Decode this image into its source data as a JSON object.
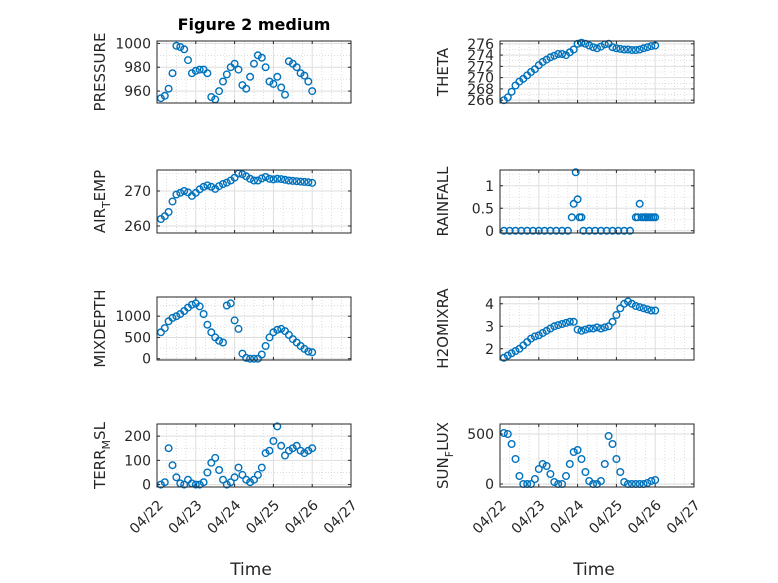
{
  "title": "Figure 2 medium",
  "x_axis_label": "Time",
  "x_tick_labels": [
    "04/22",
    "04/23",
    "04/24",
    "04/25",
    "04/26",
    "04/27"
  ],
  "marker_color": "#0072BD",
  "chart_data": [
    {
      "type": "scatter",
      "ylabel_main": "PRESSURE",
      "ylim": [
        950,
        1002
      ],
      "yticks": [
        960,
        980,
        1000
      ],
      "x": [
        0.1,
        0.2,
        0.3,
        0.4,
        0.5,
        0.6,
        0.7,
        0.8,
        0.9,
        1.0,
        1.1,
        1.2,
        1.3,
        1.4,
        1.5,
        1.6,
        1.7,
        1.8,
        1.9,
        2.0,
        2.1,
        2.2,
        2.3,
        2.4,
        2.5,
        2.6,
        2.7,
        2.8,
        2.9,
        3.0,
        3.1,
        3.2,
        3.3,
        3.4,
        3.5,
        3.6,
        3.7,
        3.8,
        3.9,
        4.0
      ],
      "y": [
        954,
        956,
        962,
        975,
        998,
        997,
        995,
        986,
        975,
        977,
        978,
        978,
        975,
        955,
        953,
        960,
        968,
        974,
        980,
        983,
        978,
        965,
        962,
        972,
        983,
        990,
        988,
        980,
        968,
        966,
        972,
        963,
        957,
        985,
        983,
        980,
        975,
        973,
        968,
        960
      ]
    },
    {
      "type": "scatter",
      "ylabel_main": "THETA",
      "ylim": [
        265.5,
        276.5
      ],
      "yticks": [
        266,
        268,
        270,
        272,
        274,
        276
      ],
      "x": [
        0.1,
        0.2,
        0.3,
        0.4,
        0.5,
        0.6,
        0.7,
        0.8,
        0.9,
        1.0,
        1.1,
        1.2,
        1.3,
        1.4,
        1.5,
        1.6,
        1.7,
        1.8,
        1.9,
        2.0,
        2.1,
        2.2,
        2.3,
        2.4,
        2.5,
        2.6,
        2.7,
        2.8,
        2.9,
        3.0,
        3.1,
        3.2,
        3.3,
        3.4,
        3.5,
        3.6,
        3.7,
        3.8,
        3.9,
        4.0
      ],
      "y": [
        266,
        266.5,
        267.5,
        268.6,
        269.3,
        269.8,
        270.4,
        271.0,
        271.5,
        272.2,
        272.8,
        273.2,
        273.6,
        273.9,
        274.2,
        274.2,
        274.0,
        274.5,
        275.0,
        276.0,
        276.2,
        276.0,
        275.7,
        275.4,
        275.2,
        275.5,
        275.9,
        276.0,
        275.4,
        275.2,
        275.1,
        275.0,
        275.0,
        274.9,
        274.9,
        275.0,
        275.2,
        275.4,
        275.6,
        275.7
      ]
    },
    {
      "type": "scatter",
      "ylabel_main": "AIR",
      "ylabel_sub": "T",
      "ylabel_rest": "EMP",
      "ylim": [
        258,
        276
      ],
      "yticks": [
        260,
        270
      ],
      "x": [
        0.1,
        0.2,
        0.3,
        0.4,
        0.5,
        0.6,
        0.7,
        0.8,
        0.9,
        1.0,
        1.1,
        1.2,
        1.3,
        1.4,
        1.5,
        1.6,
        1.7,
        1.8,
        1.9,
        2.0,
        2.1,
        2.2,
        2.3,
        2.4,
        2.5,
        2.6,
        2.7,
        2.8,
        2.9,
        3.0,
        3.1,
        3.2,
        3.3,
        3.4,
        3.5,
        3.6,
        3.7,
        3.8,
        3.9,
        4.0
      ],
      "y": [
        262,
        262.8,
        264,
        267,
        269,
        269.5,
        270,
        269.6,
        268.6,
        269.5,
        270.5,
        271.2,
        271.6,
        271.2,
        270.6,
        271.4,
        272.0,
        272.4,
        273.0,
        273.8,
        275.0,
        274.8,
        274.2,
        273.5,
        273.0,
        273.0,
        273.6,
        274.0,
        273.5,
        273.3,
        273.5,
        273.4,
        273.2,
        273.0,
        272.9,
        272.8,
        272.7,
        272.6,
        272.5,
        272.3
      ]
    },
    {
      "type": "scatter",
      "ylabel_main": "RAINFALL",
      "ylim": [
        -0.05,
        1.35
      ],
      "yticks": [
        0,
        0.5,
        1
      ],
      "x": [
        0.1,
        0.25,
        0.4,
        0.55,
        0.7,
        0.85,
        1.0,
        1.15,
        1.3,
        1.45,
        1.6,
        1.75,
        1.85,
        1.9,
        1.95,
        2.0,
        2.05,
        2.1,
        2.15,
        2.3,
        2.45,
        2.6,
        2.75,
        2.9,
        3.05,
        3.2,
        3.35,
        3.5,
        3.55,
        3.6,
        3.65,
        3.7,
        3.75,
        3.8,
        3.85,
        3.9,
        3.95,
        4.0
      ],
      "y": [
        0,
        0,
        0,
        0,
        0,
        0,
        0,
        0,
        0,
        0,
        0,
        0,
        0.3,
        0.6,
        1.3,
        0.7,
        0.3,
        0.3,
        0,
        0,
        0,
        0,
        0,
        0,
        0,
        0,
        0,
        0.3,
        0.3,
        0.6,
        0.3,
        0.3,
        0.3,
        0.3,
        0.3,
        0.3,
        0.3,
        0.3
      ]
    },
    {
      "type": "scatter",
      "ylabel_main": "MIXDEPTH",
      "ylim": [
        -30,
        1450
      ],
      "yticks": [
        0,
        500,
        1000
      ],
      "x": [
        0.1,
        0.2,
        0.3,
        0.4,
        0.5,
        0.6,
        0.7,
        0.8,
        0.9,
        1.0,
        1.1,
        1.2,
        1.3,
        1.4,
        1.5,
        1.6,
        1.7,
        1.8,
        1.9,
        2.0,
        2.1,
        2.2,
        2.3,
        2.4,
        2.5,
        2.6,
        2.7,
        2.8,
        2.9,
        3.0,
        3.1,
        3.2,
        3.3,
        3.4,
        3.5,
        3.6,
        3.7,
        3.8,
        3.9,
        4.0
      ],
      "y": [
        620,
        720,
        880,
        960,
        1000,
        1050,
        1120,
        1200,
        1270,
        1300,
        1230,
        1050,
        800,
        620,
        500,
        420,
        380,
        1250,
        1300,
        900,
        700,
        120,
        20,
        0,
        0,
        0,
        100,
        300,
        500,
        620,
        680,
        700,
        650,
        560,
        460,
        380,
        300,
        230,
        170,
        150
      ]
    },
    {
      "type": "scatter",
      "ylabel_main": "H2OMIXRA",
      "ylim": [
        1.5,
        4.3
      ],
      "yticks": [
        2,
        3,
        4
      ],
      "x": [
        0.1,
        0.2,
        0.3,
        0.4,
        0.5,
        0.6,
        0.7,
        0.8,
        0.9,
        1.0,
        1.1,
        1.2,
        1.3,
        1.4,
        1.5,
        1.6,
        1.7,
        1.8,
        1.9,
        2.0,
        2.1,
        2.2,
        2.3,
        2.4,
        2.5,
        2.6,
        2.7,
        2.8,
        2.9,
        3.0,
        3.1,
        3.2,
        3.3,
        3.4,
        3.5,
        3.6,
        3.7,
        3.8,
        3.9,
        4.0
      ],
      "y": [
        1.6,
        1.7,
        1.8,
        1.9,
        2.0,
        2.15,
        2.3,
        2.45,
        2.55,
        2.6,
        2.7,
        2.8,
        2.9,
        3.0,
        3.05,
        3.1,
        3.15,
        3.2,
        3.2,
        2.85,
        2.8,
        2.85,
        2.9,
        2.9,
        2.95,
        2.9,
        2.95,
        3.0,
        3.2,
        3.5,
        3.8,
        4.0,
        4.1,
        4.0,
        3.9,
        3.85,
        3.8,
        3.75,
        3.7,
        3.7
      ]
    },
    {
      "type": "scatter",
      "ylabel_main": "TERR",
      "ylabel_sub": "M",
      "ylabel_rest": "SL",
      "ylim": [
        -10,
        250
      ],
      "yticks": [
        0,
        100,
        200
      ],
      "x": [
        0.1,
        0.2,
        0.3,
        0.4,
        0.5,
        0.6,
        0.7,
        0.8,
        0.9,
        1.0,
        1.1,
        1.2,
        1.3,
        1.4,
        1.5,
        1.6,
        1.7,
        1.8,
        1.9,
        2.0,
        2.1,
        2.2,
        2.3,
        2.4,
        2.5,
        2.6,
        2.7,
        2.8,
        2.9,
        3.0,
        3.1,
        3.2,
        3.3,
        3.4,
        3.5,
        3.6,
        3.7,
        3.8,
        3.9,
        4.0
      ],
      "y": [
        0,
        10,
        150,
        80,
        30,
        5,
        0,
        20,
        5,
        0,
        0,
        10,
        50,
        90,
        110,
        60,
        20,
        0,
        10,
        30,
        70,
        40,
        20,
        10,
        20,
        40,
        70,
        130,
        140,
        180,
        240,
        160,
        120,
        140,
        150,
        160,
        140,
        130,
        140,
        150
      ]
    },
    {
      "type": "scatter",
      "ylabel_main": "SUN",
      "ylabel_sub": "F",
      "ylabel_rest": "LUX",
      "ylim": [
        -30,
        600
      ],
      "yticks": [
        0,
        500
      ],
      "x": [
        0.1,
        0.2,
        0.3,
        0.4,
        0.5,
        0.6,
        0.7,
        0.8,
        0.9,
        1.0,
        1.1,
        1.2,
        1.3,
        1.4,
        1.5,
        1.6,
        1.7,
        1.8,
        1.9,
        2.0,
        2.1,
        2.2,
        2.3,
        2.4,
        2.5,
        2.6,
        2.7,
        2.8,
        2.9,
        3.0,
        3.1,
        3.2,
        3.3,
        3.4,
        3.5,
        3.6,
        3.7,
        3.8,
        3.9,
        4.0
      ],
      "y": [
        510,
        500,
        400,
        250,
        80,
        0,
        0,
        0,
        50,
        150,
        200,
        180,
        100,
        20,
        0,
        0,
        80,
        200,
        320,
        340,
        250,
        120,
        30,
        0,
        0,
        30,
        200,
        480,
        400,
        250,
        120,
        20,
        0,
        0,
        0,
        0,
        0,
        10,
        30,
        40
      ]
    }
  ]
}
